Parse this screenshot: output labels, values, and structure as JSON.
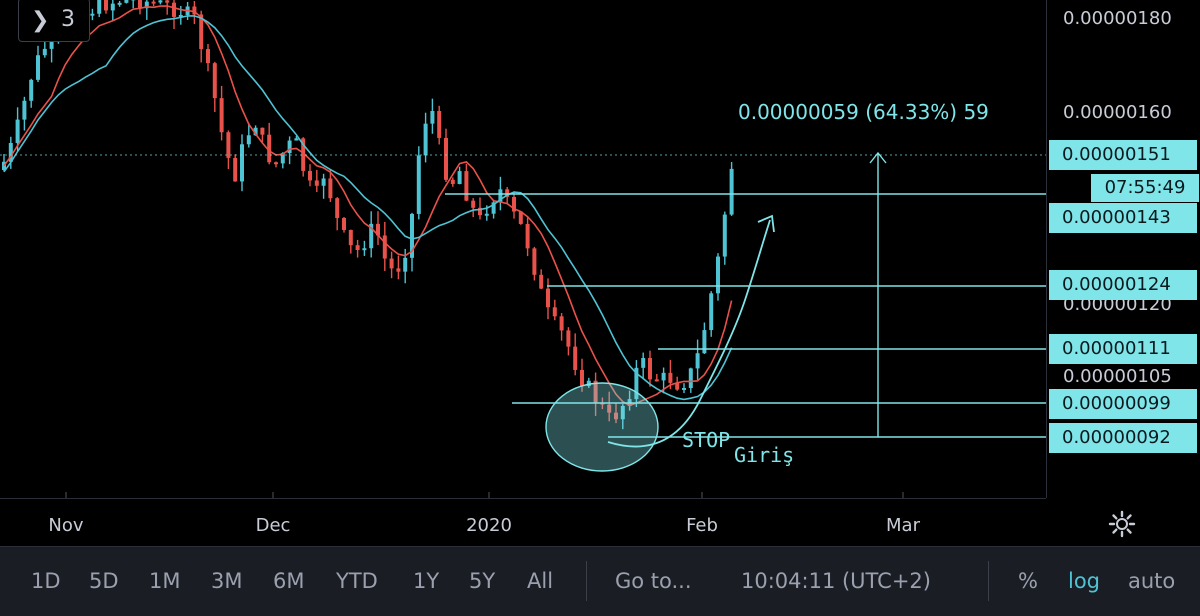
{
  "colors": {
    "up": "#4ec3d3",
    "down": "#e8524a",
    "line": "#7fe5e8",
    "bg": "#000000",
    "ma_fast": "#e8524a",
    "ma_slow": "#4ec3d3"
  },
  "symbol_panel": {
    "collapse_icon": "chevron-right-icon",
    "count": "3"
  },
  "price_axis": {
    "labels": [
      "0.00000180",
      "0.00000160",
      "0.00000120",
      "0.00000105"
    ],
    "tags": [
      "0.00000151",
      "0.00000143",
      "0.00000124",
      "0.00000111",
      "0.00000099",
      "0.00000092"
    ],
    "countdown": "07:55:49"
  },
  "time_axis": {
    "labels": [
      "Nov",
      "Dec",
      "2020",
      "Feb",
      "Mar"
    ]
  },
  "measure_label": "0.00000059 (64.33%) 59",
  "annotations": {
    "stop": "STOP",
    "entry": "Giriş"
  },
  "toolbar": {
    "ranges": [
      "1D",
      "5D",
      "1M",
      "3M",
      "6M",
      "YTD",
      "1Y",
      "5Y",
      "All"
    ],
    "goto": "Go to...",
    "clock": "10:04:11 (UTC+2)",
    "percent": "%",
    "log": "log",
    "auto": "auto"
  },
  "chart_data": {
    "type": "candlestick",
    "scale": "log",
    "x_labels": [
      "Nov",
      "Dec",
      "2020",
      "Feb",
      "Mar"
    ],
    "y_ticks": [
      1.8e-06,
      1.6e-06,
      1.2e-06,
      1.05e-06
    ],
    "horizontal_levels": [
      1.43e-06,
      1.24e-06,
      1.11e-06,
      9.9e-07,
      9.2e-07
    ],
    "last_price": 1.51e-06,
    "measure": {
      "from": 9.2e-07,
      "to": 1.51e-06,
      "change": "0.00000059 (64.33%) 59"
    },
    "series": [
      {
        "name": "",
        "description": "daily candles with two moving averages"
      }
    ]
  }
}
